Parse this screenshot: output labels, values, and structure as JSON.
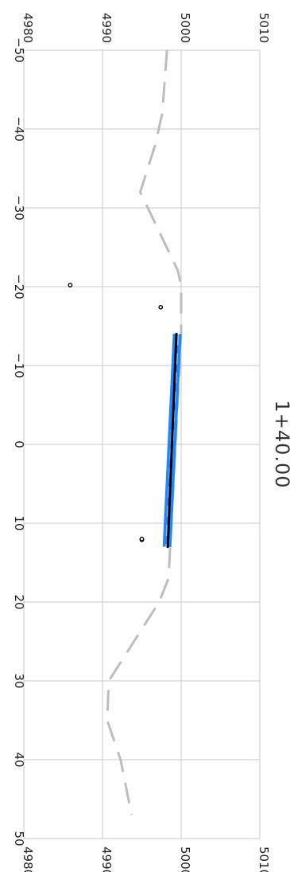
{
  "chart_data": {
    "type": "line",
    "orientation": "rotated-90-clockwise",
    "title": "1+40.00",
    "xlabel": "",
    "ylabel": "",
    "xlim": [
      -50,
      50
    ],
    "ylim": [
      4980,
      5010
    ],
    "x_ticks": [
      -50,
      -40,
      -30,
      -20,
      -10,
      0,
      10,
      20,
      30,
      40,
      50
    ],
    "x_tick_labels": [
      "−50",
      "−40",
      "−30",
      "−20",
      "−10",
      "0",
      "10",
      "20",
      "30",
      "40",
      "50"
    ],
    "y_ticks": [
      4980,
      4990,
      5000,
      5010
    ],
    "y_tick_labels": [
      "4980",
      "4990",
      "5000",
      "5010"
    ],
    "grid": true,
    "legend": "none",
    "series": [
      {
        "style": "dashed",
        "color": "#bdbdbd",
        "x": [
          -50,
          -42,
          -38,
          -32,
          -22,
          -20,
          -14,
          17,
          20,
          30,
          35,
          40,
          47
        ],
        "y": [
          4998.2,
          4997.6,
          4996.7,
          4994.8,
          4999.6,
          5000,
          5000,
          4998.4,
          4997.2,
          4990.8,
          4990.6,
          4992.3,
          4993.7
        ]
      },
      {
        "style": "band",
        "color": "#1f87ff",
        "x": [
          -14,
          13
        ],
        "y": [
          4999.5,
          4998.2
        ]
      },
      {
        "style": "solid",
        "color": "#000000",
        "x": [
          -14,
          13
        ],
        "y": [
          4999.4,
          4998.3
        ]
      }
    ],
    "points": [
      {
        "x": -20.2,
        "y": 4985.9
      },
      {
        "x": -17.4,
        "y": 4997.4
      },
      {
        "x": 12.1,
        "y": 4995
      },
      {
        "x": 12.0,
        "y": 4995
      }
    ]
  }
}
